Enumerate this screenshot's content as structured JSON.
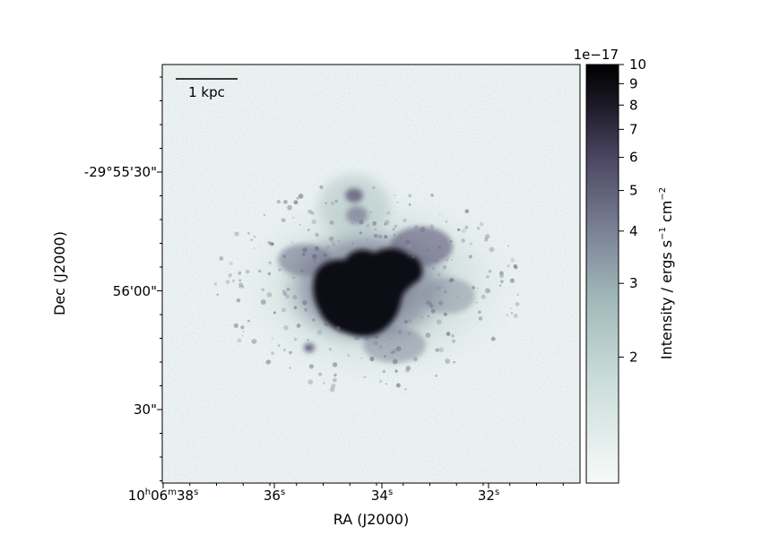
{
  "image": {
    "subject": "astronomical intensity map",
    "colormap": "bone_r",
    "scale": "log",
    "background_color": "#eef4f3",
    "core_color": "#0a0a12",
    "halo_color": "#4a4668"
  },
  "scalebar": {
    "label": "1 kpc"
  },
  "axes": {
    "xlabel": "RA (J2000)",
    "ylabel": "Dec (J2000)",
    "x_ticks": [
      {
        "h": "10",
        "m": "06",
        "s": "38"
      },
      {
        "s": "36"
      },
      {
        "s": "34"
      },
      {
        "s": "32"
      }
    ],
    "y_ticks": [
      "-29°55'30\"",
      "56'00\"",
      "30\""
    ]
  },
  "colorbar": {
    "label_main": "Intensity / ergs s",
    "label_exp1": "−1",
    "label_mid": " cm",
    "label_exp2": "−2",
    "offset_text": "1e−17",
    "ticks": [
      "10",
      "9",
      "8",
      "7",
      "6",
      "5",
      "4",
      "3",
      "2"
    ],
    "tick_values": [
      10,
      9,
      8,
      7,
      6,
      5,
      4,
      3,
      2
    ],
    "range": [
      1,
      10
    ],
    "colors": [
      "#f4f8f7",
      "#bcd3d0",
      "#8fa6ad",
      "#6d7188",
      "#3c3852",
      "#000000"
    ]
  }
}
